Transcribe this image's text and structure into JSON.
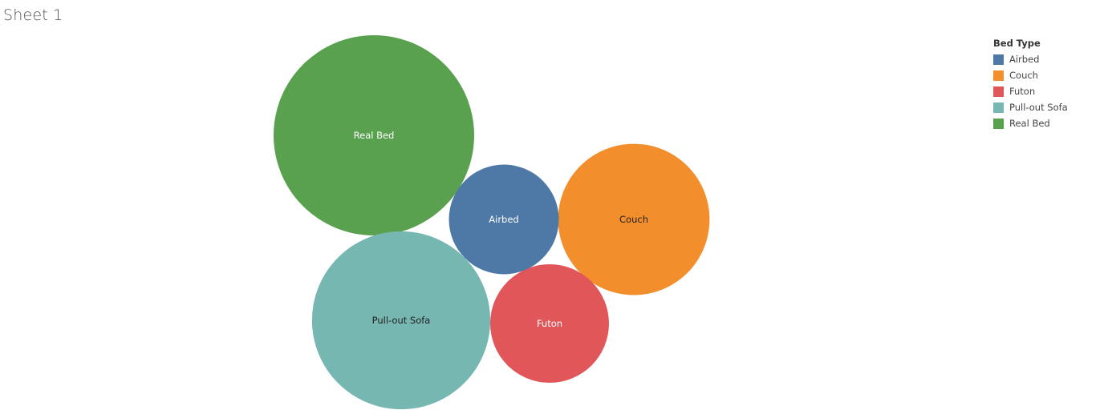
{
  "sheet": {
    "title": "Sheet 1"
  },
  "legend": {
    "title": "Bed Type",
    "items": [
      {
        "label": "Airbed",
        "color": "#4e79a7"
      },
      {
        "label": "Couch",
        "color": "#f28e2b"
      },
      {
        "label": "Futon",
        "color": "#e15759"
      },
      {
        "label": "Pull-out Sofa",
        "color": "#76b7b2"
      },
      {
        "label": "Real Bed",
        "color": "#59a14f"
      }
    ]
  },
  "chart_data": {
    "type": "bubble",
    "series": [
      {
        "name": "Real Bed",
        "value": 100,
        "color": "#59a14f",
        "label_color": "#ffffff"
      },
      {
        "name": "Pull-out Sofa",
        "value": 79,
        "color": "#76b7b2",
        "label_color": "#1f1f1f"
      },
      {
        "name": "Couch",
        "value": 57,
        "color": "#f28e2b",
        "label_color": "#1f1f1f"
      },
      {
        "name": "Futon",
        "value": 35,
        "color": "#e15759",
        "label_color": "#ffffff"
      },
      {
        "name": "Airbed",
        "value": 30,
        "color": "#4e79a7",
        "label_color": "#ffffff"
      }
    ],
    "legend_position": "top-right"
  }
}
